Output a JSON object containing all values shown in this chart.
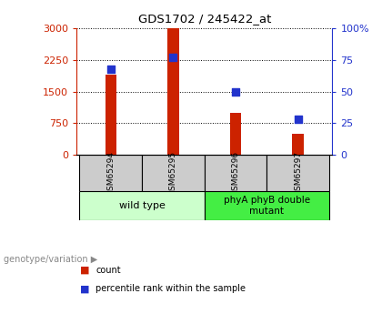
{
  "title": "GDS1702 / 245422_at",
  "samples": [
    "GSM65294",
    "GSM65295",
    "GSM65296",
    "GSM65297"
  ],
  "counts": [
    1900,
    3000,
    1000,
    500
  ],
  "percentiles": [
    68,
    77,
    50,
    28
  ],
  "ylim_left": [
    0,
    3000
  ],
  "ylim_right": [
    0,
    100
  ],
  "yticks_left": [
    0,
    750,
    1500,
    2250,
    3000
  ],
  "yticks_right": [
    0,
    25,
    50,
    75,
    100
  ],
  "bar_color": "#cc2200",
  "dot_color": "#2233cc",
  "groups": [
    {
      "label": "wild type",
      "indices": [
        0,
        1
      ],
      "color": "#ccffcc"
    },
    {
      "label": "phyA phyB double\nmutant",
      "indices": [
        2,
        3
      ],
      "color": "#44ee44"
    }
  ],
  "legend_bar_label": "count",
  "legend_dot_label": "percentile rank within the sample",
  "genotype_label": "genotype/variation",
  "background_color": "#ffffff",
  "plot_bg": "#ffffff",
  "grid_color": "#000000",
  "tick_color_left": "#cc2200",
  "tick_color_right": "#2233cc",
  "sample_box_color": "#cccccc",
  "bar_width": 0.18
}
